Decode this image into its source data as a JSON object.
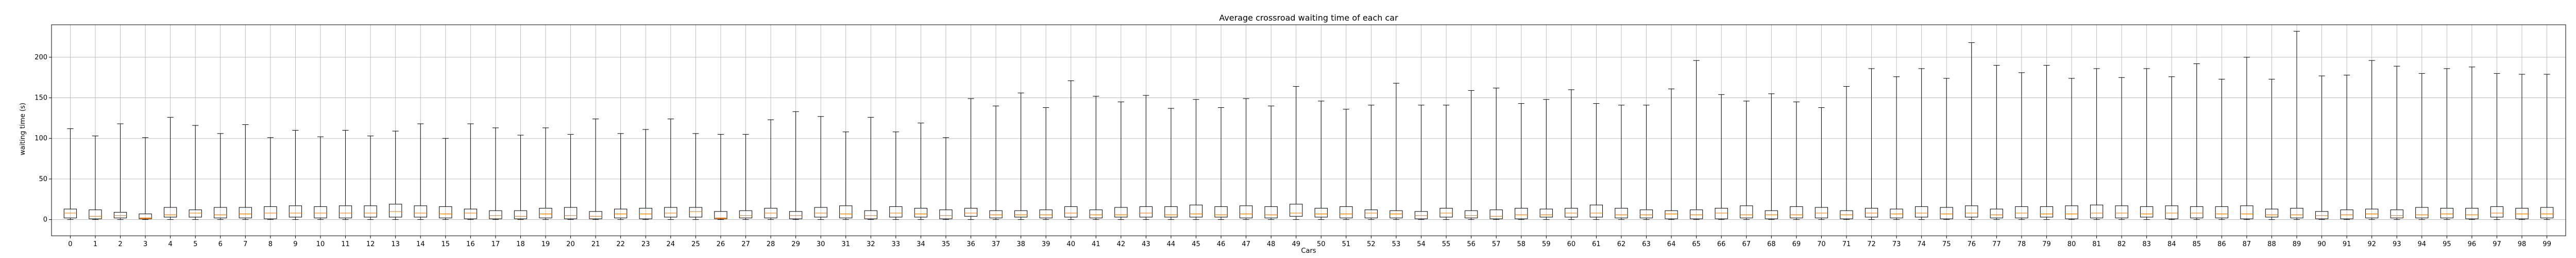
{
  "chart_data": {
    "type": "box",
    "title": "Average crossroad waiting time of each car",
    "xlabel": "Cars",
    "ylabel": "waiting time (s)",
    "ylim": [
      -20,
      240
    ],
    "yticks": [
      0,
      50,
      100,
      150,
      200
    ],
    "grid": true,
    "colors": {
      "median": "#ff7f0e",
      "box": "#000000",
      "grid": "#b0b0b0"
    },
    "categories": [
      "0",
      "1",
      "2",
      "3",
      "4",
      "5",
      "6",
      "7",
      "8",
      "9",
      "10",
      "11",
      "12",
      "13",
      "14",
      "15",
      "16",
      "17",
      "18",
      "19",
      "20",
      "21",
      "22",
      "23",
      "24",
      "25",
      "26",
      "27",
      "28",
      "29",
      "30",
      "31",
      "32",
      "33",
      "34",
      "35",
      "36",
      "37",
      "38",
      "39",
      "40",
      "41",
      "42",
      "43",
      "44",
      "45",
      "46",
      "47",
      "48",
      "49",
      "50",
      "51",
      "52",
      "53",
      "54",
      "55",
      "56",
      "57",
      "58",
      "59",
      "60",
      "61",
      "62",
      "63",
      "64",
      "65",
      "66",
      "67",
      "68",
      "69",
      "70",
      "71",
      "72",
      "73",
      "74",
      "75",
      "76",
      "77",
      "78",
      "79",
      "80",
      "81",
      "82",
      "83",
      "84",
      "85",
      "86",
      "87",
      "88",
      "89",
      "90",
      "91",
      "92",
      "93",
      "94",
      "95",
      "96",
      "97",
      "98",
      "99"
    ],
    "whisker_max": [
      112,
      103,
      118,
      101,
      126,
      116,
      106,
      117,
      101,
      110,
      102,
      110,
      103,
      109,
      118,
      100,
      118,
      113,
      104,
      113,
      105,
      124,
      106,
      111,
      124,
      106,
      105,
      105,
      123,
      133,
      127,
      108,
      126,
      108,
      119,
      101,
      149,
      140,
      156,
      138,
      171,
      152,
      145,
      153,
      137,
      148,
      138,
      149,
      140,
      164,
      146,
      136,
      141,
      168,
      141,
      141,
      159,
      162,
      143,
      148,
      160,
      143,
      141,
      141,
      161,
      196,
      154,
      146,
      155,
      145,
      138,
      164,
      186,
      176,
      186,
      174,
      218,
      190,
      181,
      190,
      174,
      186,
      175,
      186,
      176,
      192,
      173,
      200,
      173,
      232,
      177,
      178,
      196,
      189,
      180,
      186,
      188,
      180,
      179,
      179
    ],
    "q1": [
      2,
      1,
      2,
      1,
      3,
      3,
      2,
      2,
      1,
      3,
      2,
      2,
      3,
      3,
      3,
      2,
      1,
      1,
      1,
      2,
      1,
      1,
      2,
      1,
      3,
      3,
      1,
      2,
      2,
      1,
      3,
      2,
      1,
      3,
      3,
      1,
      4,
      2,
      3,
      2,
      3,
      2,
      3,
      3,
      3,
      3,
      3,
      2,
      2,
      4,
      3,
      2,
      2,
      2,
      1,
      3,
      2,
      1,
      1,
      3,
      3,
      3,
      2,
      2,
      1,
      1,
      1,
      2,
      1,
      2,
      2,
      1,
      3,
      2,
      3,
      1,
      3,
      2,
      2,
      3,
      1,
      2,
      2,
      3,
      1,
      2,
      2,
      1,
      3,
      2,
      1,
      1,
      2,
      2,
      2,
      2,
      1,
      3,
      1,
      2
    ],
    "median": [
      8,
      4,
      5,
      2,
      6,
      8,
      6,
      7,
      8,
      8,
      8,
      8,
      8,
      10,
      8,
      7,
      8,
      5,
      4,
      7,
      5,
      4,
      7,
      7,
      8,
      10,
      2,
      5,
      8,
      5,
      8,
      7,
      5,
      8,
      7,
      5,
      8,
      6,
      6,
      6,
      8,
      6,
      6,
      8,
      6,
      7,
      6,
      7,
      6,
      8,
      7,
      7,
      8,
      7,
      5,
      8,
      5,
      4,
      6,
      6,
      8,
      8,
      6,
      6,
      7,
      6,
      8,
      6,
      6,
      6,
      8,
      6,
      8,
      7,
      8,
      7,
      8,
      6,
      8,
      7,
      7,
      8,
      8,
      7,
      8,
      8,
      7,
      7,
      6,
      6,
      5,
      6,
      7,
      5,
      6,
      7,
      6,
      8,
      7,
      7
    ],
    "q3": [
      13,
      12,
      9,
      7,
      15,
      12,
      15,
      15,
      16,
      17,
      16,
      17,
      17,
      19,
      17,
      16,
      13,
      11,
      11,
      14,
      15,
      10,
      13,
      14,
      15,
      15,
      10,
      11,
      14,
      10,
      15,
      17,
      11,
      16,
      14,
      12,
      14,
      11,
      11,
      12,
      16,
      12,
      15,
      16,
      16,
      18,
      16,
      17,
      16,
      19,
      14,
      16,
      12,
      11,
      10,
      14,
      11,
      12,
      14,
      13,
      14,
      18,
      14,
      12,
      11,
      12,
      14,
      17,
      11,
      16,
      15,
      11,
      14,
      13,
      16,
      15,
      17,
      13,
      16,
      16,
      17,
      18,
      17,
      16,
      17,
      16,
      16,
      17,
      13,
      14,
      10,
      12,
      13,
      12,
      15,
      14,
      14,
      16,
      14,
      15
    ],
    "whisker_min": [
      0,
      0,
      0,
      0,
      0,
      0,
      0,
      0,
      0,
      0,
      0,
      0,
      0,
      0,
      0,
      0,
      0,
      0,
      0,
      0,
      0,
      0,
      0,
      0,
      0,
      0,
      0,
      0,
      0,
      0,
      0,
      0,
      0,
      0,
      0,
      0,
      0,
      0,
      0,
      0,
      0,
      0,
      0,
      0,
      0,
      0,
      0,
      0,
      0,
      0,
      0,
      0,
      0,
      0,
      0,
      0,
      0,
      0,
      0,
      0,
      0,
      0,
      0,
      0,
      0,
      0,
      0,
      0,
      0,
      0,
      0,
      0,
      0,
      0,
      0,
      0,
      0,
      0,
      0,
      0,
      0,
      0,
      0,
      0,
      0,
      0,
      0,
      0,
      0,
      0,
      0,
      0,
      0,
      0,
      0,
      0,
      0,
      0,
      0,
      0
    ]
  }
}
